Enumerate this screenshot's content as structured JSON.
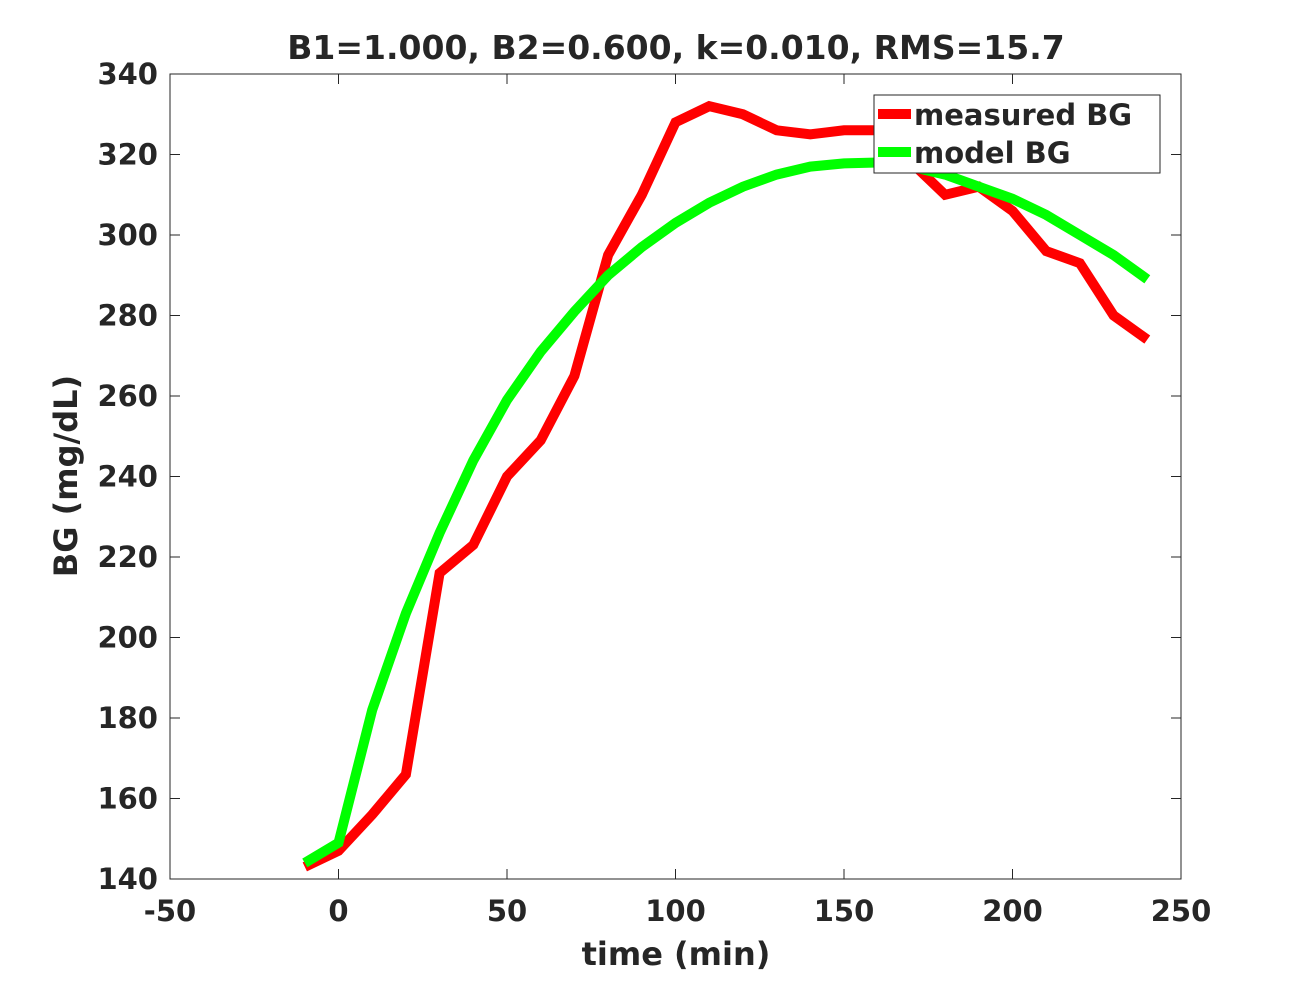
{
  "chart_data": {
    "type": "line",
    "title": "B1=1.000, B2=0.600, k=0.010, RMS=15.7",
    "xlabel": "time (min)",
    "ylabel": "BG (mg/dL)",
    "xlim": [
      -50,
      250
    ],
    "ylim": [
      140,
      340
    ],
    "xticks": [
      -50,
      0,
      50,
      100,
      150,
      200,
      250
    ],
    "yticks": [
      140,
      160,
      180,
      200,
      220,
      240,
      260,
      280,
      300,
      320,
      340
    ],
    "grid": false,
    "legend_position": "top-right",
    "series": [
      {
        "name": "measured BG",
        "color": "#ff0000",
        "x": [
          -10,
          0,
          10,
          20,
          30,
          40,
          50,
          60,
          70,
          80,
          90,
          100,
          110,
          120,
          130,
          140,
          150,
          160,
          170,
          180,
          190,
          200,
          210,
          220,
          230,
          240
        ],
        "y": [
          143,
          147,
          156,
          166,
          216,
          223,
          240,
          249,
          265,
          295,
          310,
          328,
          332,
          330,
          326,
          325,
          326,
          326,
          318,
          310,
          312,
          306,
          296,
          293,
          280,
          274
        ]
      },
      {
        "name": "model BG",
        "color": "#00ff00",
        "x": [
          -10,
          0,
          10,
          20,
          30,
          40,
          50,
          60,
          70,
          80,
          90,
          100,
          110,
          120,
          130,
          140,
          150,
          160,
          170,
          180,
          190,
          200,
          210,
          220,
          230,
          240
        ],
        "y": [
          144,
          149,
          182,
          206,
          226,
          244,
          259,
          271,
          281,
          290,
          297,
          303,
          308,
          312,
          315,
          317,
          317.8,
          318,
          317,
          315,
          312,
          309,
          305,
          300,
          295,
          289
        ]
      }
    ]
  }
}
